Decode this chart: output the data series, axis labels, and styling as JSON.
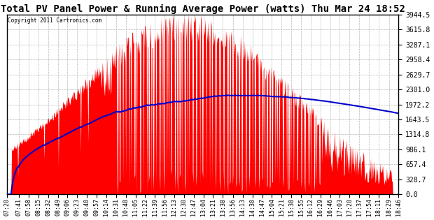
{
  "title": "Total PV Panel Power & Running Average Power (watts) Thu Mar 24 18:52",
  "copyright": "Copyright 2011 Cartronics.com",
  "y_ticks": [
    0.0,
    328.7,
    657.4,
    986.1,
    1314.8,
    1643.5,
    1972.2,
    2301.0,
    2629.7,
    2958.4,
    3287.1,
    3615.8,
    3944.5
  ],
  "y_max": 3944.5,
  "y_min": 0.0,
  "background_color": "#ffffff",
  "plot_bg_color": "#ffffff",
  "grid_color": "#b0b0b0",
  "fill_color": "#ff0000",
  "line_color": "#0000cc",
  "title_color": "#000000",
  "title_fontsize": 10,
  "tick_labels": [
    "07:20",
    "07:41",
    "07:58",
    "08:15",
    "08:32",
    "08:49",
    "09:06",
    "09:23",
    "09:40",
    "09:57",
    "10:14",
    "10:31",
    "10:48",
    "11:05",
    "11:22",
    "11:39",
    "11:56",
    "12:13",
    "12:30",
    "12:47",
    "13:04",
    "13:21",
    "13:38",
    "13:56",
    "14:13",
    "14:30",
    "14:47",
    "15:04",
    "15:21",
    "15:38",
    "15:55",
    "16:12",
    "16:29",
    "16:46",
    "17:03",
    "17:20",
    "17:37",
    "17:54",
    "18:11",
    "18:29",
    "18:46"
  ]
}
